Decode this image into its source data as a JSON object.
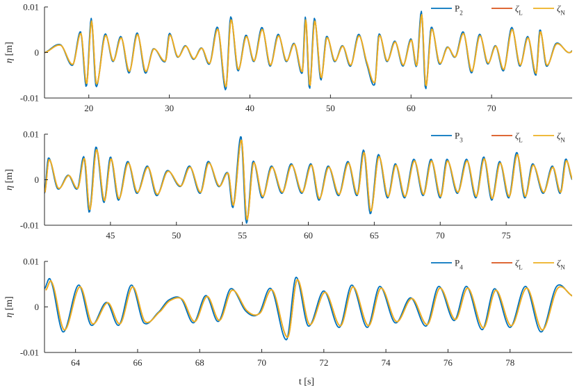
{
  "xlabel": "t [s]",
  "colors": {
    "P": "#0072BD",
    "zetaL": "#D95319",
    "zetaN": "#EDB120",
    "axis": "#262626"
  },
  "chart_data": [
    {
      "type": "line",
      "panel_id": "p2",
      "ylabel": "η [m]",
      "xlim": [
        14.5,
        80.0
      ],
      "ylim": [
        -0.01,
        0.01
      ],
      "xticks": [
        20,
        30,
        40,
        50,
        60,
        70
      ],
      "yticks": [
        -0.01,
        0,
        0.01
      ],
      "ytick_labels": [
        "-0.01",
        "0",
        "0.01"
      ],
      "legend_position": "top-right",
      "legend": [
        {
          "key": "P",
          "base": "P",
          "sub": "2"
        },
        {
          "key": "zetaL",
          "base": "ζ",
          "sub": "L"
        },
        {
          "key": "zetaN",
          "base": "ζ",
          "sub": "N"
        }
      ],
      "anchors": [
        [
          14.5,
          0.0
        ],
        [
          16.5,
          0.0017
        ],
        [
          18.0,
          -0.0028
        ],
        [
          19.0,
          0.0045
        ],
        [
          19.7,
          -0.0075
        ],
        [
          20.3,
          0.0075
        ],
        [
          20.9,
          -0.0075
        ],
        [
          22.0,
          0.004
        ],
        [
          23.0,
          -0.002
        ],
        [
          24.0,
          0.0035
        ],
        [
          25.0,
          -0.0045
        ],
        [
          26.0,
          0.0043
        ],
        [
          27.0,
          -0.0045
        ],
        [
          28.0,
          0.0008
        ],
        [
          29.5,
          -0.002
        ],
        [
          30.0,
          0.0042
        ],
        [
          31.0,
          -0.001
        ],
        [
          32.0,
          0.0015
        ],
        [
          33.0,
          -0.0015
        ],
        [
          34.0,
          0.001
        ],
        [
          35.0,
          -0.0025
        ],
        [
          36.0,
          0.0055
        ],
        [
          37.0,
          -0.0082
        ],
        [
          37.6,
          0.0078
        ],
        [
          38.5,
          -0.004
        ],
        [
          39.5,
          0.0038
        ],
        [
          40.5,
          -0.002
        ],
        [
          41.5,
          0.0055
        ],
        [
          42.5,
          -0.003
        ],
        [
          43.5,
          0.004
        ],
        [
          44.5,
          -0.002
        ],
        [
          45.5,
          0.002
        ],
        [
          46.5,
          -0.0045
        ],
        [
          46.9,
          0.0078
        ],
        [
          47.4,
          -0.008
        ],
        [
          48.0,
          0.0075
        ],
        [
          48.8,
          -0.006
        ],
        [
          49.5,
          0.0035
        ],
        [
          50.5,
          -0.002
        ],
        [
          51.5,
          0.0015
        ],
        [
          52.5,
          -0.003
        ],
        [
          53.5,
          0.004
        ],
        [
          54.5,
          -0.0025
        ],
        [
          55.5,
          -0.007
        ],
        [
          56.0,
          0.004
        ],
        [
          57.0,
          -0.002
        ],
        [
          58.0,
          0.0025
        ],
        [
          59.0,
          -0.003
        ],
        [
          60.0,
          0.003
        ],
        [
          60.7,
          -0.003
        ],
        [
          61.3,
          0.009
        ],
        [
          61.8,
          -0.008
        ],
        [
          62.5,
          0.0055
        ],
        [
          63.5,
          -0.0025
        ],
        [
          64.5,
          0.0012
        ],
        [
          65.5,
          -0.001
        ],
        [
          66.5,
          0.0045
        ],
        [
          67.5,
          -0.0045
        ],
        [
          68.5,
          0.004
        ],
        [
          69.5,
          -0.0025
        ],
        [
          70.5,
          0.0015
        ],
        [
          71.5,
          -0.004
        ],
        [
          72.5,
          0.0055
        ],
        [
          73.5,
          -0.003
        ],
        [
          74.5,
          0.0035
        ],
        [
          75.5,
          -0.005
        ],
        [
          76.0,
          0.005
        ],
        [
          76.8,
          -0.003
        ],
        [
          78.0,
          0.002
        ],
        [
          79.5,
          0.0
        ]
      ],
      "anchor_amplitude_note": "",
      "line_width": 1.8
    },
    {
      "type": "line",
      "panel_id": "p3",
      "ylabel": "η [m]",
      "xlim": [
        40.0,
        80.0
      ],
      "ylim": [
        -0.01,
        0.01
      ],
      "xticks": [
        45,
        50,
        55,
        60,
        65,
        70,
        75
      ],
      "yticks": [
        -0.01,
        0,
        0.01
      ],
      "ytick_labels": [
        "-0.01",
        "0",
        "0.01"
      ],
      "legend_position": "top-right",
      "legend": [
        {
          "key": "P",
          "base": "P",
          "sub": "3"
        },
        {
          "key": "zetaL",
          "base": "ζ",
          "sub": "L"
        },
        {
          "key": "zetaN",
          "base": "ζ",
          "sub": "N"
        }
      ],
      "anchors": [
        [
          40.0,
          -0.003
        ],
        [
          40.3,
          0.0048
        ],
        [
          41.0,
          -0.002
        ],
        [
          41.8,
          0.001
        ],
        [
          42.5,
          -0.002
        ],
        [
          43.0,
          0.005
        ],
        [
          43.4,
          -0.0072
        ],
        [
          43.9,
          0.0072
        ],
        [
          44.5,
          -0.005
        ],
        [
          45.0,
          0.005
        ],
        [
          45.6,
          -0.0045
        ],
        [
          46.3,
          0.004
        ],
        [
          47.0,
          -0.003
        ],
        [
          47.8,
          0.003
        ],
        [
          48.5,
          -0.0035
        ],
        [
          49.3,
          0.002
        ],
        [
          50.3,
          -0.0015
        ],
        [
          51.0,
          0.003
        ],
        [
          51.8,
          -0.003
        ],
        [
          52.4,
          0.004
        ],
        [
          53.2,
          -0.0015
        ],
        [
          53.9,
          0.0015
        ],
        [
          54.3,
          -0.006
        ],
        [
          54.9,
          0.0095
        ],
        [
          55.3,
          -0.0095
        ],
        [
          55.8,
          0.004
        ],
        [
          56.5,
          -0.004
        ],
        [
          57.2,
          0.003
        ],
        [
          58.0,
          -0.003
        ],
        [
          58.7,
          0.0035
        ],
        [
          59.5,
          -0.003
        ],
        [
          60.2,
          0.0035
        ],
        [
          60.8,
          -0.0045
        ],
        [
          61.5,
          0.003
        ],
        [
          62.3,
          -0.0035
        ],
        [
          63.0,
          0.004
        ],
        [
          63.7,
          -0.0035
        ],
        [
          64.2,
          0.0065
        ],
        [
          64.7,
          -0.0075
        ],
        [
          65.3,
          0.0055
        ],
        [
          66.0,
          -0.004
        ],
        [
          66.6,
          0.0035
        ],
        [
          67.3,
          -0.004
        ],
        [
          68.0,
          0.0045
        ],
        [
          68.7,
          -0.0035
        ],
        [
          69.3,
          0.0045
        ],
        [
          70.0,
          -0.004
        ],
        [
          70.5,
          0.0045
        ],
        [
          71.3,
          -0.003
        ],
        [
          72.0,
          0.0045
        ],
        [
          72.7,
          -0.004
        ],
        [
          73.3,
          0.005
        ],
        [
          73.9,
          -0.0045
        ],
        [
          74.5,
          0.004
        ],
        [
          75.2,
          -0.004
        ],
        [
          75.8,
          0.006
        ],
        [
          76.4,
          -0.004
        ],
        [
          77.0,
          0.0035
        ],
        [
          77.8,
          -0.003
        ],
        [
          78.5,
          0.003
        ],
        [
          79.1,
          -0.003
        ],
        [
          79.5,
          0.0045
        ],
        [
          80.0,
          0.0
        ]
      ],
      "anchor_amplitude_note": "",
      "line_width": 1.8
    },
    {
      "type": "line",
      "panel_id": "p4",
      "ylabel": "η [m]",
      "xlim": [
        63.0,
        80.0
      ],
      "ylim": [
        -0.01,
        0.01
      ],
      "xticks": [
        64,
        66,
        68,
        70,
        72,
        74,
        76,
        78
      ],
      "yticks": [
        -0.01,
        0,
        0.01
      ],
      "ytick_labels": [
        "-0.01",
        "0",
        "0.01"
      ],
      "legend_position": "top-right",
      "legend": [
        {
          "key": "P",
          "base": "P",
          "sub": "4"
        },
        {
          "key": "zetaL",
          "base": "ζ",
          "sub": "L"
        },
        {
          "key": "zetaN",
          "base": "ζ",
          "sub": "N"
        }
      ],
      "anchors": [
        [
          63.0,
          0.004
        ],
        [
          63.2,
          0.0058
        ],
        [
          63.6,
          -0.0055
        ],
        [
          64.1,
          0.0048
        ],
        [
          64.5,
          -0.004
        ],
        [
          65.0,
          0.001
        ],
        [
          65.4,
          -0.004
        ],
        [
          65.8,
          0.0048
        ],
        [
          66.2,
          -0.0035
        ],
        [
          66.7,
          -0.001
        ],
        [
          67.0,
          0.0015
        ],
        [
          67.4,
          0.0018
        ],
        [
          67.8,
          -0.0035
        ],
        [
          68.2,
          0.0025
        ],
        [
          68.6,
          -0.0032
        ],
        [
          69.0,
          0.004
        ],
        [
          69.5,
          -0.001
        ],
        [
          69.9,
          -0.0015
        ],
        [
          70.3,
          0.004
        ],
        [
          70.8,
          -0.0072
        ],
        [
          71.1,
          0.0065
        ],
        [
          71.5,
          -0.0042
        ],
        [
          72.0,
          0.0035
        ],
        [
          72.5,
          -0.0045
        ],
        [
          72.9,
          0.0048
        ],
        [
          73.4,
          -0.0045
        ],
        [
          73.8,
          0.0045
        ],
        [
          74.3,
          -0.0035
        ],
        [
          74.8,
          0.002
        ],
        [
          75.3,
          -0.0042
        ],
        [
          75.7,
          0.0045
        ],
        [
          76.2,
          -0.003
        ],
        [
          76.6,
          0.0045
        ],
        [
          77.1,
          -0.005
        ],
        [
          77.5,
          0.004
        ],
        [
          78.0,
          -0.0045
        ],
        [
          78.5,
          0.0045
        ],
        [
          79.0,
          -0.0055
        ],
        [
          79.5,
          0.0045
        ],
        [
          80.0,
          0.0025
        ]
      ],
      "anchor_amplitude_note": "",
      "line_width": 1.8
    }
  ]
}
